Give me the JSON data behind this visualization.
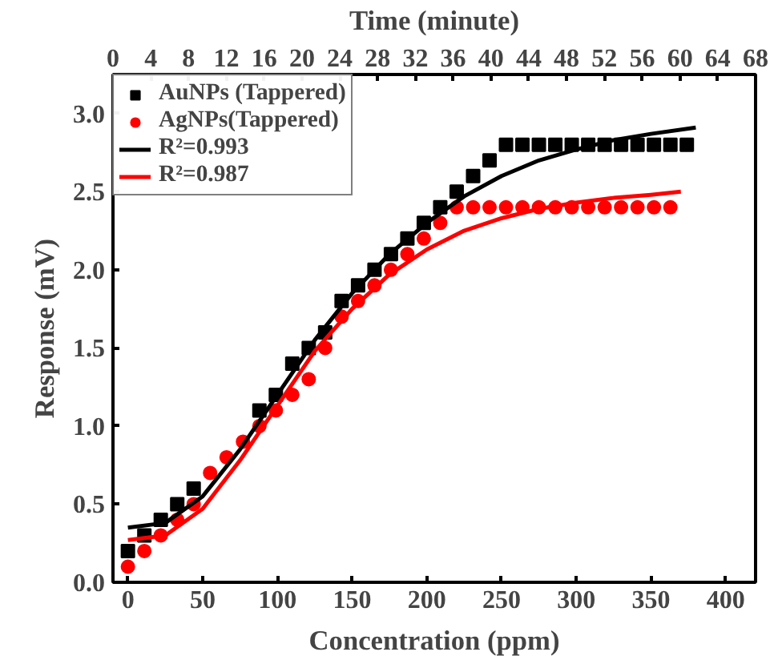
{
  "chart_data": {
    "type": "scatter",
    "xlabel": "Concentration (ppm)",
    "ylabel": "Response (mV)",
    "x2label": "Time (minute)",
    "xlim": [
      -10,
      420
    ],
    "xticks": [
      0,
      50,
      100,
      150,
      200,
      250,
      300,
      350,
      400
    ],
    "ylim": [
      0,
      3.25
    ],
    "yticks": [
      {
        "value": 0,
        "label": "0.0"
      },
      0.5,
      {
        "value": 1,
        "label": "1.0"
      },
      1.5,
      {
        "value": 2,
        "label": "2.0"
      },
      2.5,
      {
        "value": 3,
        "label": "3.0"
      }
    ],
    "x2lim": [
      0,
      68
    ],
    "x2ticks": [
      0,
      4,
      8,
      12,
      16,
      20,
      24,
      28,
      32,
      36,
      40,
      44,
      48,
      52,
      56,
      60,
      64,
      68
    ],
    "grid": false,
    "legend": "top left",
    "series": [
      {
        "name": "AuNPs (Tappered)",
        "marker": "square",
        "color": "#000000",
        "x": [
          0,
          11,
          22,
          33,
          44,
          55,
          66,
          77,
          88,
          99,
          110,
          121,
          132,
          143,
          154,
          165,
          176,
          187,
          198,
          209,
          220,
          231,
          242,
          253,
          264,
          275,
          286,
          297,
          308,
          319,
          330,
          341,
          352,
          363,
          374
        ],
        "values": [
          0.2,
          0.3,
          0.4,
          0.5,
          0.6,
          null,
          null,
          null,
          1.1,
          1.2,
          1.4,
          1.5,
          1.6,
          1.8,
          1.9,
          2.0,
          2.1,
          2.2,
          2.3,
          2.4,
          2.5,
          2.6,
          2.7,
          2.8,
          2.8,
          2.8,
          2.8,
          2.8,
          2.8,
          2.8,
          2.8,
          2.8,
          2.8,
          2.8,
          2.8
        ]
      },
      {
        "name": "AgNPs(Tappered)",
        "marker": "circle",
        "color": "#ff0000",
        "x": [
          0,
          11,
          22,
          33,
          44,
          55,
          66,
          77,
          88,
          99,
          110,
          121,
          132,
          143,
          154,
          165,
          176,
          187,
          198,
          209,
          220,
          231,
          242,
          253,
          264,
          275,
          286,
          297,
          308,
          319,
          330,
          341,
          352,
          363
        ],
        "values": [
          0.1,
          0.2,
          0.3,
          0.4,
          0.5,
          0.7,
          0.8,
          0.9,
          1.0,
          1.1,
          1.2,
          1.3,
          1.5,
          1.7,
          1.8,
          1.9,
          2.0,
          2.1,
          2.2,
          2.3,
          2.4,
          2.4,
          2.4,
          2.4,
          2.4,
          2.4,
          2.4,
          2.4,
          2.4,
          2.4,
          2.4,
          2.4,
          2.4,
          2.4
        ]
      },
      {
        "name": "R²=0.993",
        "type": "line",
        "color": "#000000",
        "x": [
          0,
          25,
          50,
          75,
          100,
          125,
          150,
          175,
          200,
          225,
          250,
          275,
          300,
          325,
          350,
          380
        ],
        "values": [
          0.35,
          0.38,
          0.55,
          0.85,
          1.2,
          1.55,
          1.85,
          2.1,
          2.3,
          2.47,
          2.6,
          2.7,
          2.77,
          2.83,
          2.87,
          2.91
        ]
      },
      {
        "name": "R²=0.987",
        "type": "line",
        "color": "#ff0000",
        "x": [
          0,
          25,
          50,
          75,
          100,
          125,
          150,
          175,
          200,
          225,
          250,
          275,
          300,
          325,
          350,
          370
        ],
        "values": [
          0.27,
          0.3,
          0.47,
          0.78,
          1.13,
          1.48,
          1.75,
          1.97,
          2.13,
          2.25,
          2.33,
          2.39,
          2.43,
          2.46,
          2.48,
          2.5
        ]
      }
    ]
  }
}
